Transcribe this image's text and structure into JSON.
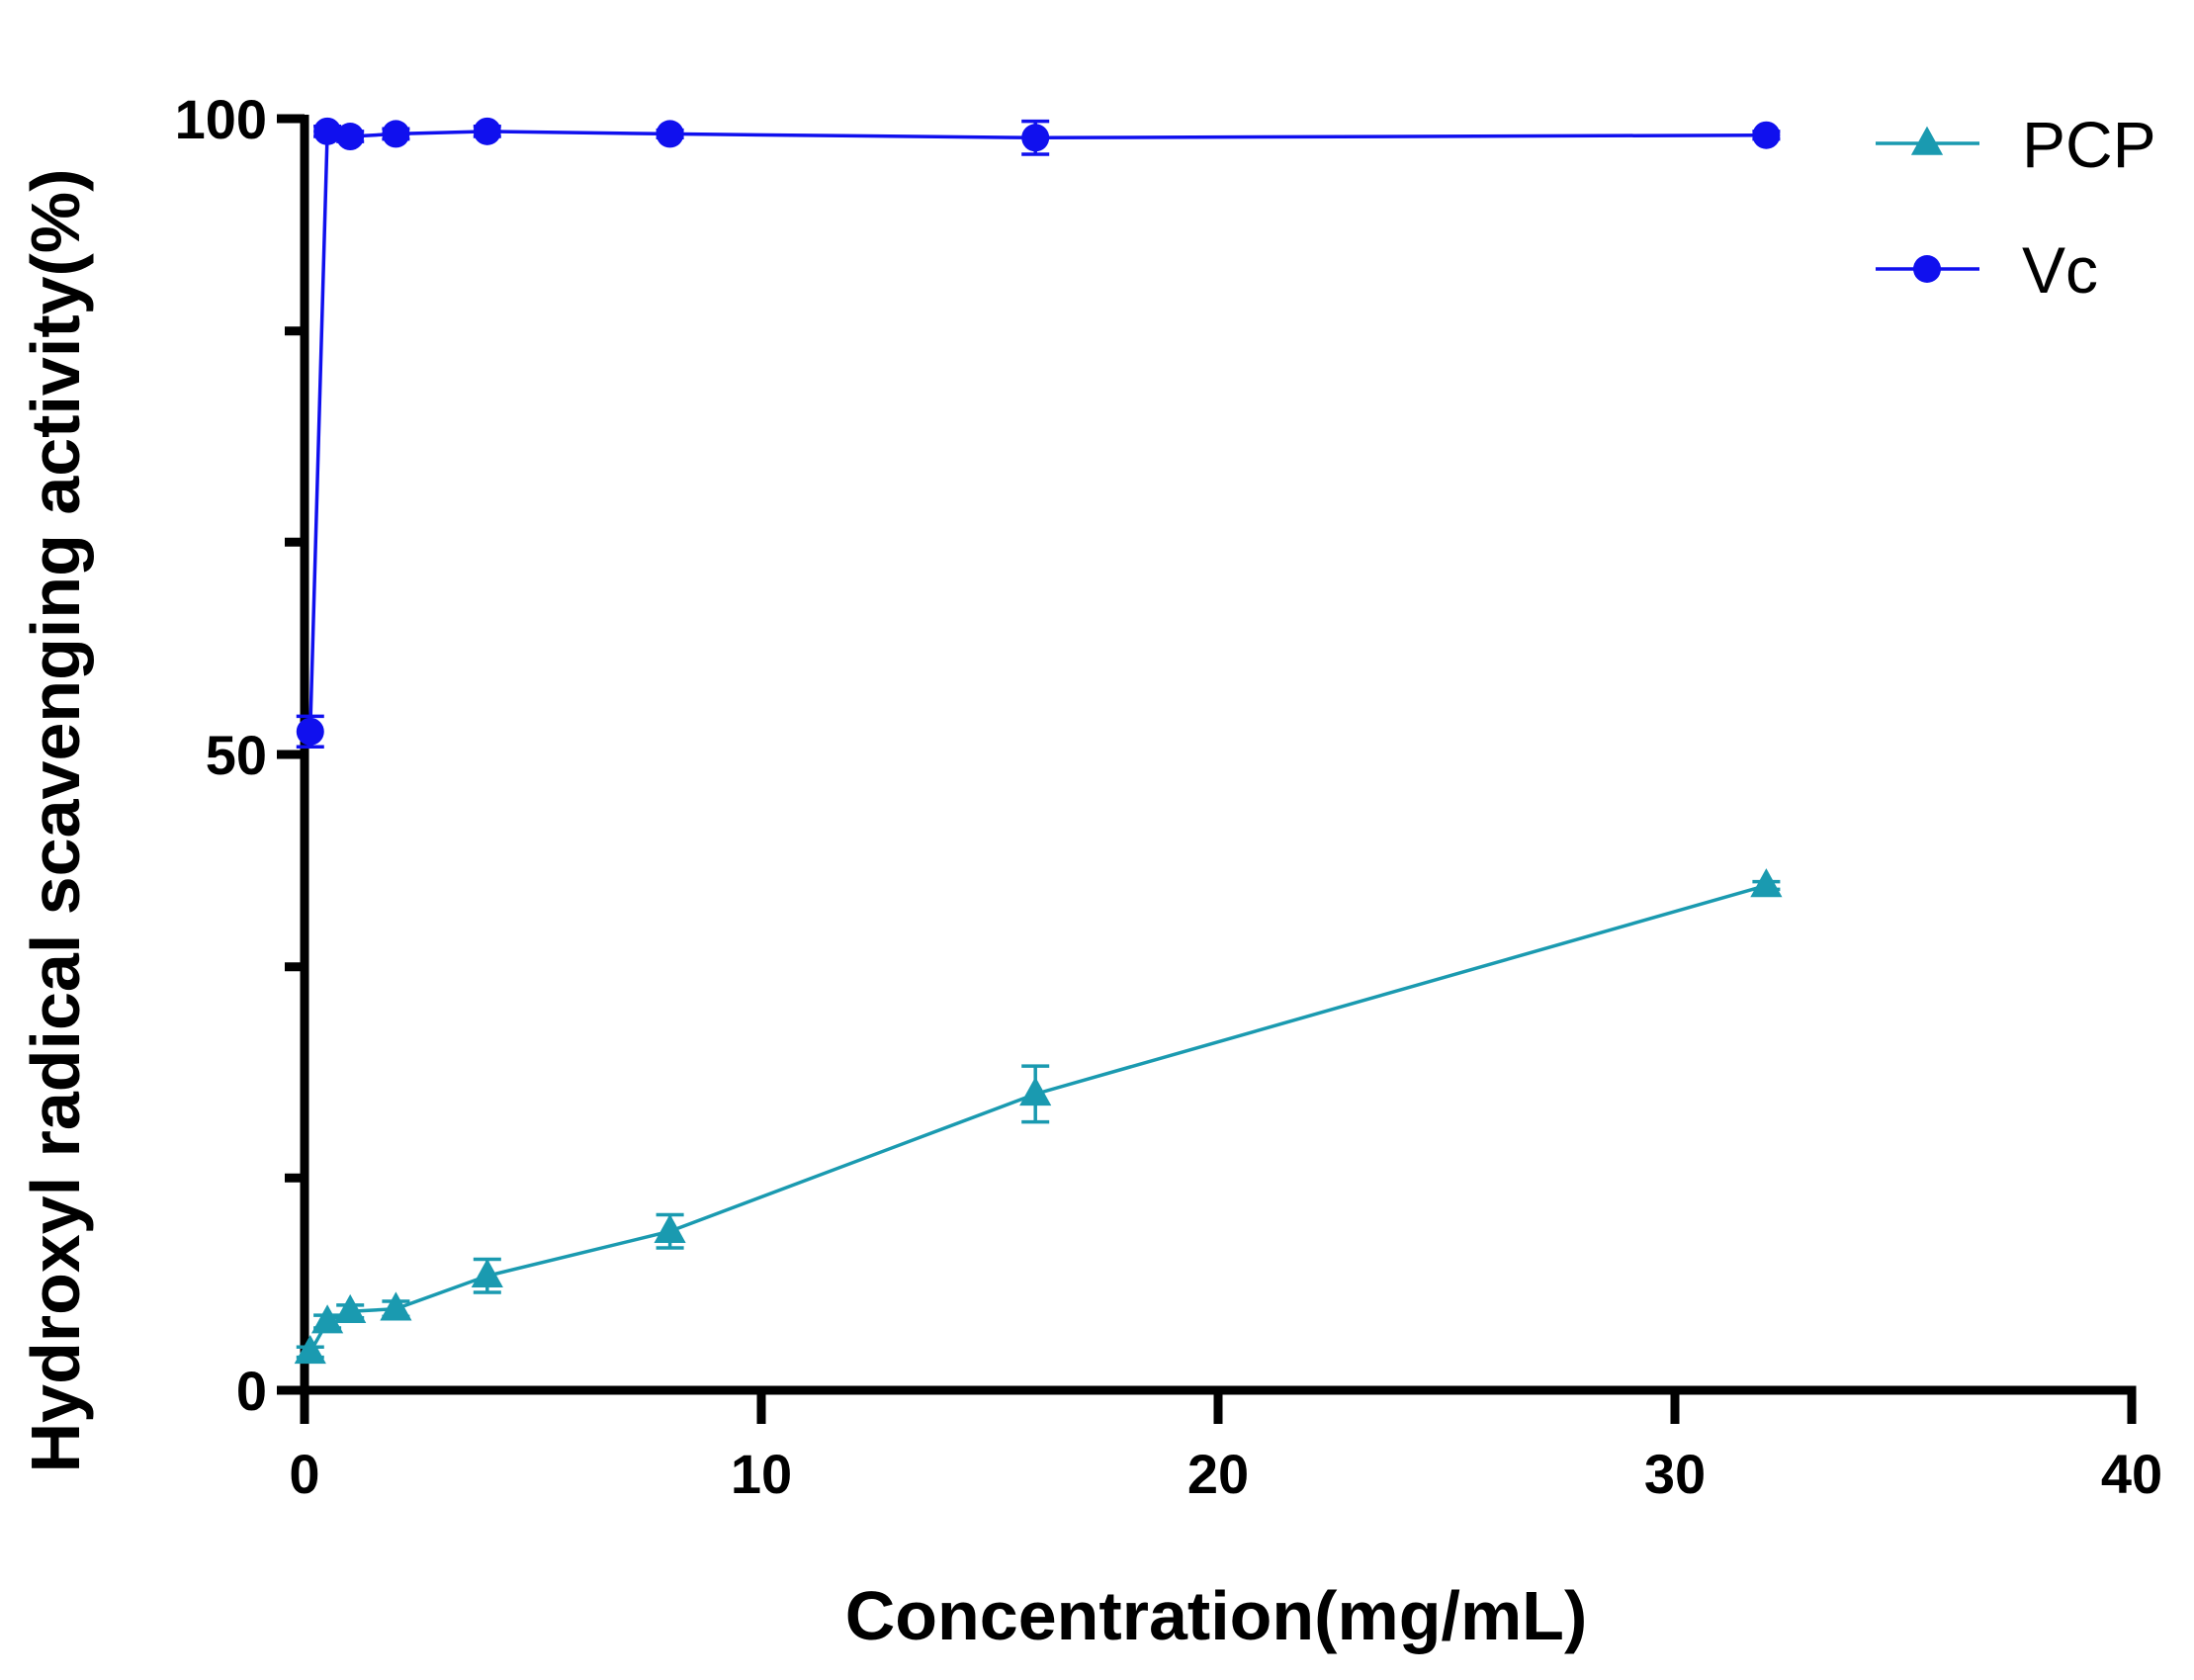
{
  "chart_data": {
    "type": "line",
    "title": "",
    "xlabel": "Concentration(mg/mL)",
    "ylabel": "Hydroxyl radical scavenging activity(%)",
    "xlim": [
      0,
      40
    ],
    "ylim": [
      0,
      100
    ],
    "x_ticks": [
      0,
      10,
      20,
      30,
      40
    ],
    "x_tick_labels": [
      "0",
      "10",
      "20",
      "30",
      "40"
    ],
    "y_ticks": [
      0,
      50,
      100
    ],
    "y_tick_labels": [
      "0",
      "50",
      "100"
    ],
    "y_minor_ticks": [
      16.7,
      33.3,
      66.7,
      83.3
    ],
    "grid": false,
    "legend_position": "top-right",
    "x": [
      0.125,
      0.5,
      1,
      2,
      4,
      8,
      16,
      32
    ],
    "series": [
      {
        "name": "PCP",
        "color": "#1a9ab0",
        "marker": "triangle",
        "values": [
          3.0,
          5.4,
          6.2,
          6.4,
          9.0,
          12.5,
          23.3,
          39.7
        ],
        "errors": [
          0.4,
          0.5,
          0.5,
          0.6,
          1.3,
          1.3,
          2.2,
          0.3
        ]
      },
      {
        "name": "Vc",
        "color": "#1010ee",
        "marker": "circle",
        "values": [
          51.8,
          99.0,
          98.6,
          98.8,
          99.0,
          98.8,
          98.5,
          98.7
        ],
        "errors": [
          1.2,
          0.4,
          0.4,
          0.4,
          0.4,
          0.3,
          1.3,
          0.3
        ]
      }
    ]
  }
}
